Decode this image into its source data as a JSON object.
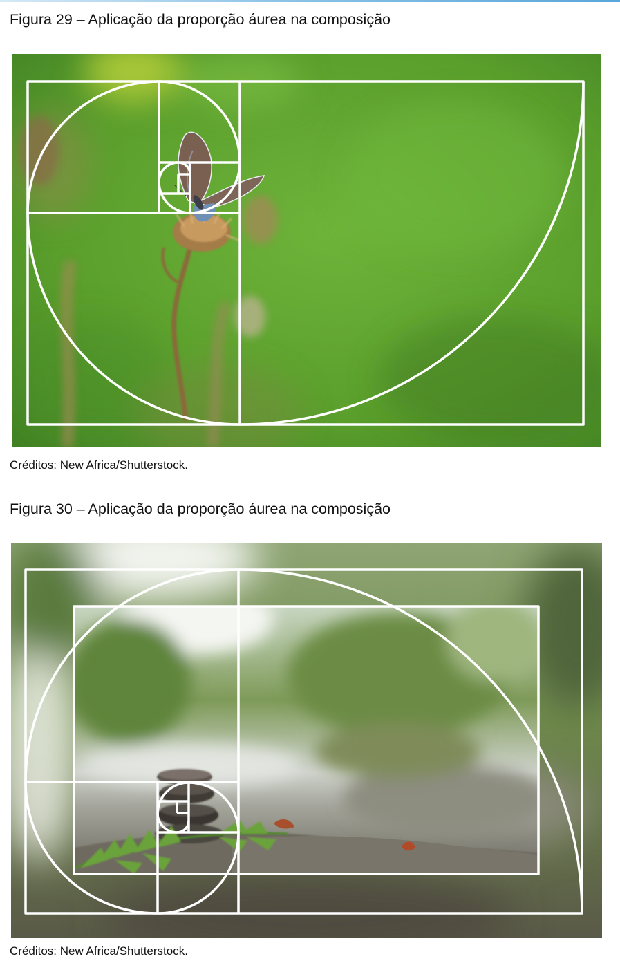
{
  "figures": [
    {
      "caption": "Figura 29 – Aplicação da proporção áurea na composição",
      "image_subject": "butterfly-on-thistle",
      "credits": "Créditos: New Africa/Shutterstock."
    },
    {
      "caption": "Figura 30 – Aplicação da proporção áurea na composição",
      "image_subject": "stacked-stones-by-river",
      "credits": "Créditos: New Africa/Shutterstock."
    }
  ],
  "colors": {
    "overlay": "#ffffff",
    "top_rule": "#5aa6da",
    "grass_green": "#5c9f2d",
    "forest_green": "#56703a"
  }
}
